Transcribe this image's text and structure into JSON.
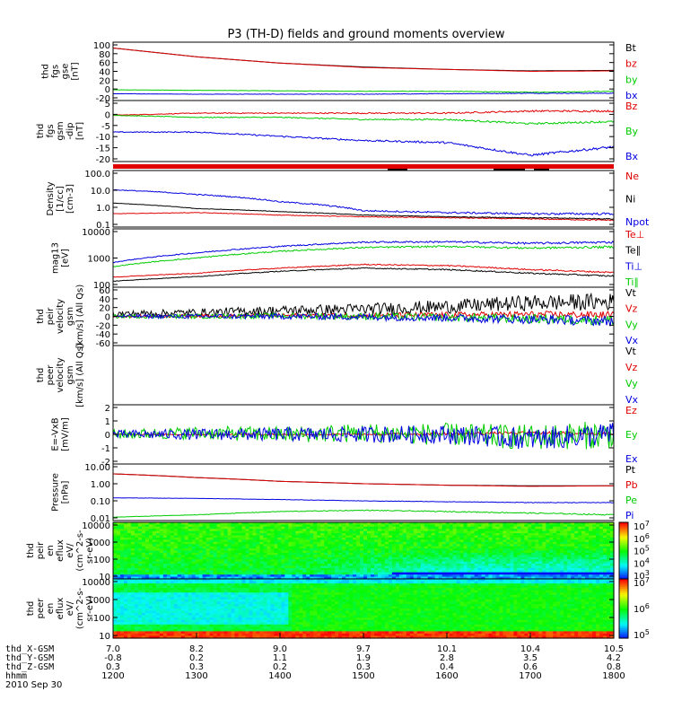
{
  "title": "P3 (TH-D) fields and ground moments overview",
  "colors": {
    "black": "#000000",
    "red": "#e00000",
    "green": "#00cc00",
    "blue": "#0000e0"
  },
  "panels": [
    {
      "id": "fgs_gse",
      "ylabel": [
        "thd",
        "fgs",
        "gse",
        "[nT]"
      ],
      "yticks": [
        "100",
        "80",
        "60",
        "40",
        "20",
        "0",
        "-20"
      ],
      "legend": [
        {
          "text": "Bt",
          "color": "black"
        },
        {
          "text": "bz",
          "color": "red"
        },
        {
          "text": "by",
          "color": "green"
        },
        {
          "text": "bx",
          "color": "blue"
        }
      ]
    },
    {
      "id": "fgs_gsm",
      "ylabel": [
        "thd",
        "fgs",
        "gsm",
        "-dip",
        "[nT]"
      ],
      "yticks": [
        "5",
        "0",
        "-5",
        "-10",
        "-15",
        "-20"
      ],
      "legend": [
        {
          "text": "Bz",
          "color": "red"
        },
        {
          "text": "By",
          "color": "green"
        },
        {
          "text": "Bx",
          "color": "blue"
        }
      ]
    },
    {
      "id": "density",
      "ylabel": [
        "Density",
        "[1/cc]",
        "[cm-3]"
      ],
      "yticks": [
        "100.0",
        "10.0",
        "1.0",
        "0.1"
      ],
      "legend": [
        {
          "text": "Ne",
          "color": "red"
        },
        {
          "text": "Ni",
          "color": "black"
        },
        {
          "text": "Npot",
          "color": "blue"
        }
      ]
    },
    {
      "id": "temp",
      "ylabel": [
        "mag13",
        "[eV]"
      ],
      "yticks": [
        "10000",
        "1000",
        "100"
      ],
      "legend": [
        {
          "text": "Te⊥",
          "color": "red"
        },
        {
          "text": "Te∥",
          "color": "black"
        },
        {
          "text": "Ti⊥",
          "color": "blue"
        },
        {
          "text": "Ti∥",
          "color": "green"
        }
      ]
    },
    {
      "id": "peir_vel",
      "ylabel": [
        "thd",
        "peir",
        "velocity",
        "gsm",
        "[km/s] (All Qs)"
      ],
      "yticks": [
        "60",
        "40",
        "20",
        "0",
        "-20",
        "-40",
        "-60"
      ],
      "legend": [
        {
          "text": "Vt",
          "color": "black"
        },
        {
          "text": "Vz",
          "color": "red"
        },
        {
          "text": "Vy",
          "color": "green"
        },
        {
          "text": "Vx",
          "color": "blue"
        }
      ]
    },
    {
      "id": "peer_vel",
      "ylabel": [
        "thd",
        "peer",
        "velocity",
        "gsm",
        "[km/s] (All Qs)"
      ],
      "yticks": [],
      "legend": [
        {
          "text": "Vt",
          "color": "black"
        },
        {
          "text": "Vz",
          "color": "red"
        },
        {
          "text": "Vy",
          "color": "green"
        },
        {
          "text": "Vx",
          "color": "blue"
        }
      ]
    },
    {
      "id": "efield",
      "ylabel": [
        "E=-VxB",
        "[mV/m]"
      ],
      "yticks": [
        "2",
        "1",
        "0",
        "-1",
        "-2"
      ],
      "legend": [
        {
          "text": "Ez",
          "color": "red"
        },
        {
          "text": "Ey",
          "color": "green"
        },
        {
          "text": "Ex",
          "color": "blue"
        }
      ]
    },
    {
      "id": "pressure",
      "ylabel": [
        "Pressure",
        "[nPa]"
      ],
      "yticks": [
        "10.00",
        "1.00",
        "0.10",
        "0.01"
      ],
      "legend": [
        {
          "text": "Pt",
          "color": "black"
        },
        {
          "text": "Pb",
          "color": "red"
        },
        {
          "text": "Pe",
          "color": "green"
        },
        {
          "text": "Pi",
          "color": "blue"
        }
      ]
    },
    {
      "id": "peir_eflux",
      "ylabel": [
        "thd",
        "peir",
        "en",
        "eflux",
        "eV/",
        "(cm^2-s-",
        "sr-eV)"
      ],
      "yticks": [
        "10000",
        "1000",
        "100",
        "10"
      ],
      "colorbar": [
        "10^7",
        "10^6",
        "10^5",
        "10^4",
        "10^3"
      ]
    },
    {
      "id": "peer_eflux",
      "ylabel": [
        "thd",
        "peer",
        "en",
        "eflux",
        "eV/",
        "(cm^2-s-",
        "sr-eV)"
      ],
      "yticks": [
        "10000",
        "1000",
        "100",
        "10"
      ],
      "colorbar": [
        "10^7",
        "10^6",
        "10^5"
      ]
    }
  ],
  "x_axis": {
    "rows": [
      {
        "label": "thd_X-GSM",
        "values": [
          "7.0",
          "8.2",
          "9.0",
          "9.7",
          "10.1",
          "10.4",
          "10.5"
        ]
      },
      {
        "label": "thd_Y-GSM",
        "values": [
          "-0.8",
          "0.2",
          "1.1",
          "1.9",
          "2.8",
          "3.5",
          "4.2"
        ]
      },
      {
        "label": "thd_Z-GSM",
        "values": [
          "0.3",
          "0.3",
          "0.2",
          "0.3",
          "0.4",
          "0.6",
          "0.8"
        ]
      },
      {
        "label": "hhmm",
        "values": [
          "1200",
          "1300",
          "1400",
          "1500",
          "1600",
          "1700",
          "1800"
        ]
      }
    ],
    "date": "2010 Sep 30"
  },
  "chart_data": {
    "type": "line",
    "title": "P3 (TH-D) fields and ground moments overview",
    "x": [
      "1200",
      "1300",
      "1400",
      "1500",
      "1600",
      "1700",
      "1800"
    ],
    "xlabel": "hhmm",
    "date": "2010 Sep 30",
    "panels": [
      {
        "id": "fgs_gse",
        "ylim": [
          -20,
          100
        ],
        "series": [
          {
            "name": "Bt",
            "values": [
              88,
              70,
              57,
              49,
              44,
              41,
              42
            ]
          },
          {
            "name": "bz",
            "values": [
              88,
              70,
              57,
              48,
              44,
              40,
              41
            ]
          },
          {
            "name": "by",
            "values": [
              2,
              1,
              0,
              -1,
              -1,
              -3,
              -1
            ]
          },
          {
            "name": "bx",
            "values": [
              -6,
              -7,
              -7,
              -7,
              -6,
              -5,
              -5
            ]
          }
        ]
      },
      {
        "id": "fgs_gsm",
        "ylim": [
          -22,
          7
        ],
        "series": [
          {
            "name": "Bz",
            "values": [
              0,
              1,
              1,
              1,
              1,
              2,
              2
            ]
          },
          {
            "name": "By",
            "values": [
              0,
              -1,
              -1,
              -2,
              -2,
              -4,
              -3
            ]
          },
          {
            "name": "Bx",
            "values": [
              -8,
              -8,
              -10,
              -12,
              -13,
              -19,
              -15
            ]
          }
        ]
      },
      {
        "id": "density",
        "log": true,
        "ylim": [
          0.1,
          200
        ],
        "series": [
          {
            "name": "Ne",
            "values": [
              0.6,
              0.7,
              0.5,
              0.4,
              0.35,
              0.3,
              0.25
            ]
          },
          {
            "name": "Ni",
            "values": [
              2.5,
              1.2,
              0.8,
              0.5,
              0.4,
              0.35,
              0.3
            ]
          },
          {
            "name": "Npot",
            "values": [
              15,
              8,
              3,
              0.9,
              0.7,
              0.6,
              0.6
            ]
          }
        ]
      },
      {
        "id": "temp",
        "log": true,
        "ylim": [
          100,
          10000
        ],
        "series": [
          {
            "name": "Te⊥",
            "values": [
              220,
              300,
              450,
              600,
              550,
              400,
              320
            ]
          },
          {
            "name": "Te∥",
            "values": [
              160,
              230,
              350,
              450,
              400,
              300,
              240
            ]
          },
          {
            "name": "Ti⊥",
            "values": [
              700,
              1500,
              2500,
              3500,
              3600,
              3200,
              3500
            ]
          },
          {
            "name": "Ti∥",
            "values": [
              500,
              1000,
              1700,
              2300,
              2500,
              2200,
              2400
            ]
          }
        ]
      },
      {
        "id": "peir_vel",
        "ylim": [
          -60,
          60
        ],
        "series": [
          {
            "name": "Vt",
            "values": [
              5,
              8,
              12,
              15,
              20,
              28,
              30
            ]
          },
          {
            "name": "Vz",
            "values": [
              0,
              1,
              2,
              2,
              3,
              4,
              3
            ]
          },
          {
            "name": "Vy",
            "values": [
              0,
              0,
              1,
              0,
              -2,
              -5,
              -8
            ]
          },
          {
            "name": "Vx",
            "values": [
              0,
              0,
              0,
              -1,
              -3,
              -6,
              -10
            ]
          }
        ]
      },
      {
        "id": "efield",
        "ylim": [
          -2,
          2
        ],
        "series": [
          {
            "name": "Ez",
            "values": [
              0,
              0,
              0,
              0,
              0.05,
              0.1,
              0.05
            ]
          },
          {
            "name": "Ey",
            "values": [
              0,
              0.1,
              0,
              0.1,
              0,
              -0.2,
              0
            ]
          },
          {
            "name": "Ex",
            "values": [
              0,
              0,
              0,
              0,
              0,
              -0.3,
              0
            ]
          }
        ]
      },
      {
        "id": "pressure",
        "log": true,
        "ylim": [
          0.01,
          10
        ],
        "series": [
          {
            "name": "Pt",
            "values": [
              3.0,
              1.9,
              1.2,
              0.9,
              0.75,
              0.7,
              0.7
            ]
          },
          {
            "name": "Pb",
            "values": [
              3.0,
              1.9,
              1.2,
              0.9,
              0.75,
              0.65,
              0.7
            ]
          },
          {
            "name": "Pe",
            "values": [
              0.015,
              0.02,
              0.03,
              0.035,
              0.03,
              0.025,
              0.02
            ]
          },
          {
            "name": "Pi",
            "values": [
              0.16,
              0.15,
              0.13,
              0.11,
              0.1,
              0.09,
              0.09
            ]
          }
        ]
      }
    ]
  }
}
